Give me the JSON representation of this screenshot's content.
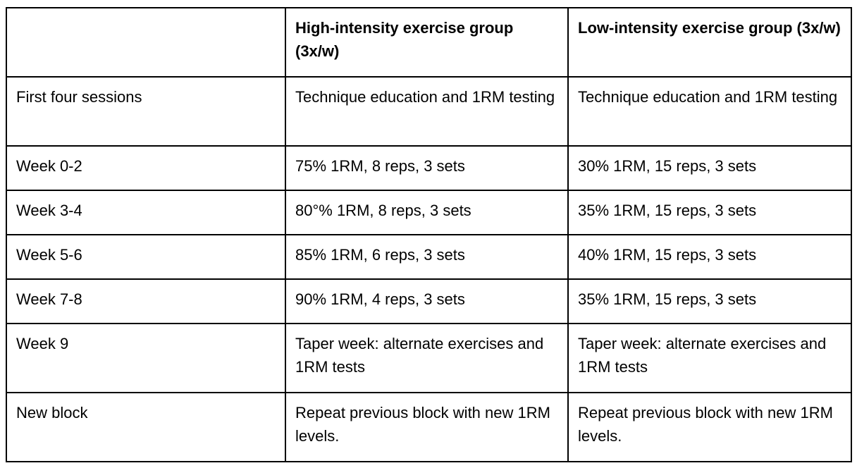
{
  "table": {
    "headers": [
      "",
      "High-intensity exercise group (3x/w)",
      "Low-intensity exercise group (3x/w)"
    ],
    "rows": [
      {
        "label": "First four sessions",
        "high": "Technique education and 1RM testing",
        "low": "Technique education and 1RM testing"
      },
      {
        "label": "Week 0-2",
        "high": "75% 1RM, 8 reps, 3 sets",
        "low": "30% 1RM, 15 reps, 3 sets"
      },
      {
        "label": "Week 3-4",
        "high": "80°% 1RM, 8 reps, 3 sets",
        "low": "35% 1RM, 15 reps, 3 sets"
      },
      {
        "label": "Week 5-6",
        "high": "85% 1RM, 6 reps, 3 sets",
        "low": "40% 1RM, 15 reps, 3 sets"
      },
      {
        "label": "Week 7-8",
        "high": "90% 1RM, 4 reps, 3 sets",
        "low": "35% 1RM, 15 reps, 3 sets"
      },
      {
        "label": "Week 9",
        "high": "Taper week: alternate exercises and 1RM tests",
        "low": "Taper week: alternate exercises and 1RM tests"
      },
      {
        "label": "New block",
        "high": "Repeat previous block with new 1RM levels.",
        "low": "Repeat previous block with new 1RM levels."
      }
    ],
    "colors": {
      "border": "#000000",
      "background": "#ffffff",
      "text": "#000000"
    }
  }
}
